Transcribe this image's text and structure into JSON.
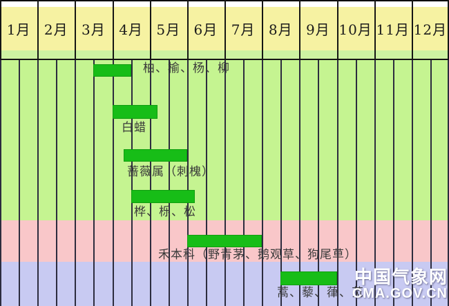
{
  "months": [
    "1月",
    "2月",
    "3月",
    "4月",
    "5月",
    "6月",
    "7月",
    "8月",
    "9月",
    "10月",
    "11月",
    "12月"
  ],
  "watermark": {
    "line1": "中国气象网",
    "line2": "CMA.GOV.CN"
  },
  "colors": {
    "header_yellow": "#f6f2a2",
    "header_green_strip": "#cdf2a2",
    "band_green": "#c5f491",
    "band_pink": "#f9c7c9",
    "band_purple": "#c8caf2",
    "bar_green": "#17bd17",
    "grid_line": "#2c2c3e"
  },
  "chart_data": {
    "type": "bar",
    "subtype": "gantt-style pollen season timeline",
    "x_categories": [
      "1月",
      "2月",
      "3月",
      "4月",
      "5月",
      "6月",
      "7月",
      "8月",
      "9月",
      "10月",
      "11月",
      "12月"
    ],
    "x_range_months": [
      1,
      13
    ],
    "grid": "vertical lines at half-month intervals",
    "legend_position": "none",
    "background_bands": [
      {
        "color_hex": "#c5f491",
        "color": "green",
        "from_row": 1,
        "to_row": 4
      },
      {
        "color_hex": "#f9c7c9",
        "color": "pink",
        "rows": [
          5
        ]
      },
      {
        "color_hex": "#c8caf2",
        "color": "purple",
        "rows": [
          6
        ]
      }
    ],
    "series": [
      {
        "name": "柏、榆、杨、柳",
        "start_month": 3.5,
        "end_month": 4.5,
        "background_band": "green",
        "label_placement": "right-of-bar"
      },
      {
        "name": "白蜡",
        "start_month": 4.0,
        "end_month": 5.2,
        "background_band": "green",
        "label_placement": "below-bar"
      },
      {
        "name": "蔷薇属（刺槐）",
        "start_month": 4.3,
        "end_month": 6.0,
        "background_band": "green",
        "label_placement": "below-bar"
      },
      {
        "name": "桦、栎、松",
        "start_month": 4.5,
        "end_month": 6.2,
        "background_band": "green",
        "label_placement": "below-bar"
      },
      {
        "name": "禾本科（野青茅、鹅观草、狗尾草）",
        "start_month": 6.0,
        "end_month": 8.0,
        "background_band": "pink",
        "label_placement": "below-bar"
      },
      {
        "name": "蒿、藜、葎、苋",
        "start_month": 8.5,
        "end_month": 10.0,
        "background_band": "purple",
        "label_placement": "below-bar"
      }
    ]
  }
}
